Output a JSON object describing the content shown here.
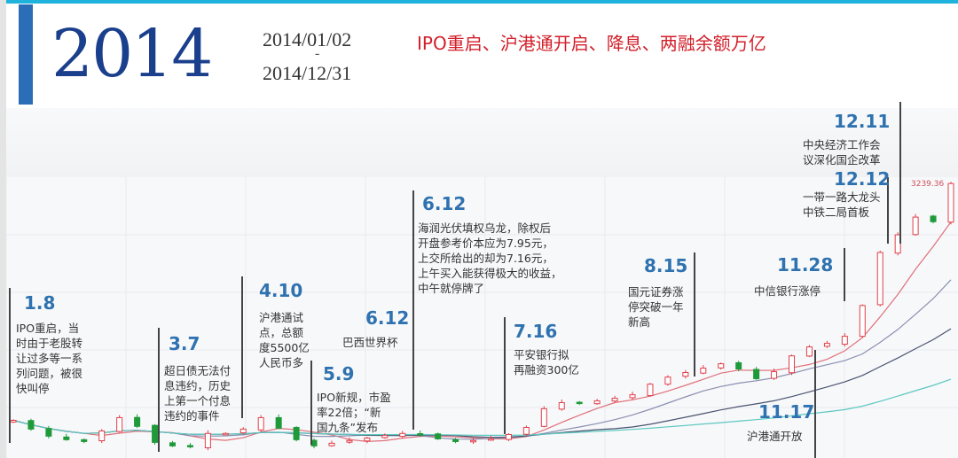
{
  "header": {
    "year": "2014",
    "start_date": "2014/01/02",
    "separator": "-",
    "end_date": "2014/12/31",
    "headline": "IPO重启、沪港通开启、降息、两融余额万亿"
  },
  "colors": {
    "accent": "#2b6db6",
    "headline": "#d21f2a",
    "event_number": "#2f72b0",
    "up": "#e0404a",
    "down": "#1f9a3a"
  },
  "events": [
    {
      "date": "1.8",
      "text": "IPO重启，当\n时由于老股转\n让过多等一系\n列问题，被很\n快叫停"
    },
    {
      "date": "3.7",
      "text": "超日债无法付\n息违约，历史\n上第一个付息\n违约的事件"
    },
    {
      "date": "4.10",
      "text": "沪港通试\n点，总额\n度5500亿\n人民币多"
    },
    {
      "date": "5.9",
      "text": "IPO新规，市盈\n率22倍；“新\n国九条”发布"
    },
    {
      "date": "6.12",
      "text": "巴西世界杯"
    },
    {
      "date": "6.12",
      "text": "海润光伏填权乌龙，除权后\n开盘参考价本应为7.95元，\n上交所给出的却为7.16元，\n上午买入能获得极大的收益，\n中午就停牌了"
    },
    {
      "date": "7.16",
      "text": "平安银行拟\n再融资300亿"
    },
    {
      "date": "8.15",
      "text": "国元证券涨\n停突破一年\n新高"
    },
    {
      "date": "11.17",
      "text": "沪港通开放"
    },
    {
      "date": "11.28",
      "text": "中信银行涨停"
    },
    {
      "date": "12.11",
      "text": "中央经济工作会\n议深化国企改革"
    },
    {
      "date": "12.12",
      "text": "一带一路大龙头\n中铁二局首板"
    }
  ],
  "chart_data": {
    "type": "candlestick",
    "title": "",
    "xlabel": "",
    "ylabel": "",
    "ylim": [
      1920,
      3270
    ],
    "grid": true,
    "high_label": "3239.36",
    "moving_averages": [
      {
        "period": 5,
        "color": "#e0707a"
      },
      {
        "period": 10,
        "color": "#8a8fb0"
      },
      {
        "period": 20,
        "color": "#4a5470"
      },
      {
        "period": 40,
        "color": "#5cc8c0"
      }
    ],
    "closes": [
      2101,
      2059,
      2025,
      2008,
      1999,
      2050,
      2114,
      2072,
      1995,
      1978,
      1974,
      2038,
      2038,
      2059,
      2114,
      2063,
      2008,
      1978,
      1991,
      2004,
      2016,
      2029,
      2038,
      2033,
      2012,
      1999,
      2004,
      2012,
      2033,
      2067,
      2157,
      2186,
      2186,
      2195,
      2207,
      2224,
      2275,
      2309,
      2331,
      2352,
      2373,
      2348,
      2301,
      2335,
      2411,
      2454,
      2471,
      2505,
      2653,
      2908,
      2993,
      3078,
      3056,
      3239.36
    ]
  }
}
